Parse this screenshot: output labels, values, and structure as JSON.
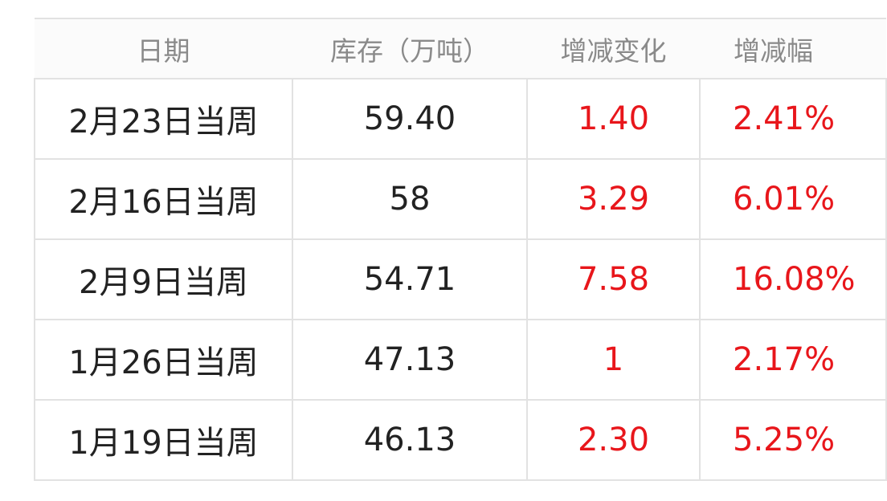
{
  "table": {
    "headers": [
      "日期",
      "库存（万吨）",
      "增减变化",
      "增减幅"
    ],
    "rows": [
      {
        "date": "2月23日当周",
        "inventory": "59.40",
        "change": "1.40",
        "pct": "2.41%"
      },
      {
        "date": "2月16日当周",
        "inventory": "58",
        "change": "3.29",
        "pct": "6.01%"
      },
      {
        "date": "2月9日当周",
        "inventory": "54.71",
        "change": "7.58",
        "pct": "16.08%"
      },
      {
        "date": "1月26日当周",
        "inventory": "47.13",
        "change": "1",
        "pct": "2.17%"
      },
      {
        "date": "1月19日当周",
        "inventory": "46.13",
        "change": "2.30",
        "pct": "5.25%"
      }
    ]
  },
  "colors": {
    "positive": "#e8161b",
    "header_text": "#8a8a8a"
  }
}
